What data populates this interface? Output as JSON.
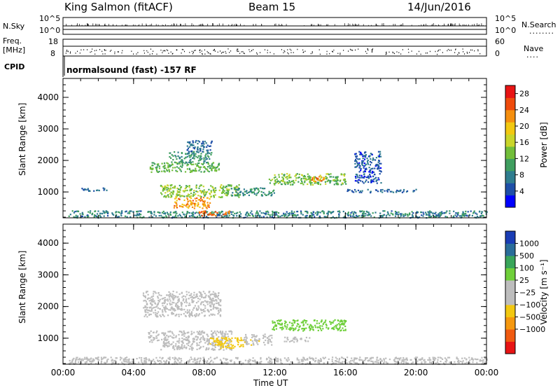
{
  "header": {
    "station": "King Salmon (fitACF)",
    "beam": "Beam 15",
    "date": "14/Jun/2016"
  },
  "strips": {
    "nsky_label": "N.Sky",
    "nsky_ticks": [
      "10^5",
      "10^0"
    ],
    "nsearch_label": "N.Search",
    "nsearch_ticks": [
      "10^5",
      "10^0"
    ],
    "freq_label_line1": "Freq.",
    "freq_label_line2": "[MHz]",
    "freq_ticks": [
      "18",
      "8"
    ],
    "nave_label": "Nave",
    "nave_ticks": [
      "60",
      "0"
    ],
    "cpid_label": "CPID",
    "cpid_text": "normalsound (fast) -157 RF"
  },
  "chart_data": [
    {
      "type": "heatmap",
      "title": "",
      "xlabel": "Time UT",
      "ylabel": "Slant Range [km]",
      "x_ticks": [
        "00:00",
        "04:00",
        "08:00",
        "12:00",
        "16:00",
        "20:00",
        "00:00"
      ],
      "y_ticks": [
        "1000",
        "2000",
        "3000",
        "4000"
      ],
      "xlim_hours": [
        0,
        24
      ],
      "ylim_km": [
        180,
        4600
      ],
      "colorbar": {
        "label": "Power [dB]",
        "ticks": [
          "4",
          "8",
          "12",
          "16",
          "20",
          "24",
          "28"
        ],
        "range": [
          0,
          30
        ],
        "colors": [
          "#0000ff",
          "#1e4fa8",
          "#2f7d8f",
          "#3f9e5f",
          "#72be3a",
          "#c9d52a",
          "#f2c811",
          "#f58f0f",
          "#ef4b0c",
          "#e81414"
        ]
      },
      "regions": [
        {
          "t0": 0.3,
          "t1": 24.0,
          "r0": 200,
          "r1": 420,
          "level": 8
        },
        {
          "t0": 1.0,
          "t1": 2.5,
          "r0": 1050,
          "r1": 1150,
          "level": 6
        },
        {
          "t0": 4.8,
          "t1": 8.9,
          "r0": 1650,
          "r1": 1950,
          "level": 12
        },
        {
          "t0": 6.0,
          "t1": 8.4,
          "r0": 1950,
          "r1": 2300,
          "level": 9
        },
        {
          "t0": 7.0,
          "t1": 8.4,
          "r0": 2300,
          "r1": 2650,
          "level": 6
        },
        {
          "t0": 5.5,
          "t1": 10.0,
          "r0": 850,
          "r1": 1250,
          "level": 14
        },
        {
          "t0": 6.2,
          "t1": 8.3,
          "r0": 500,
          "r1": 850,
          "level": 22
        },
        {
          "t0": 7.6,
          "t1": 9.4,
          "r0": 260,
          "r1": 420,
          "level": 24
        },
        {
          "t0": 9.5,
          "t1": 12.0,
          "r0": 900,
          "r1": 1150,
          "level": 9
        },
        {
          "t0": 11.5,
          "t1": 16.0,
          "r0": 1250,
          "r1": 1600,
          "level": 13
        },
        {
          "t0": 14.0,
          "t1": 14.8,
          "r0": 1350,
          "r1": 1550,
          "level": 22
        },
        {
          "t0": 16.0,
          "t1": 20.0,
          "r0": 1000,
          "r1": 1100,
          "level": 6
        },
        {
          "t0": 16.5,
          "t1": 18.0,
          "r0": 1300,
          "r1": 2300,
          "level": 5
        }
      ]
    },
    {
      "type": "heatmap",
      "title": "",
      "xlabel": "Time UT",
      "ylabel": "Slant Range [km]",
      "x_ticks": [
        "00:00",
        "04:00",
        "08:00",
        "12:00",
        "16:00",
        "20:00",
        "00:00"
      ],
      "y_ticks": [
        "1000",
        "2000",
        "3000",
        "4000"
      ],
      "xlim_hours": [
        0,
        24
      ],
      "ylim_km": [
        180,
        4600
      ],
      "colorbar": {
        "label": "Velocity [m s⁻¹]",
        "ticks": [
          "1000",
          "500",
          "100",
          "25",
          "−25",
          "−100",
          "−500",
          "−1000"
        ],
        "range": [
          -1000,
          1000
        ],
        "colors": [
          "#e81414",
          "#f05a10",
          "#f5980f",
          "#f2c811",
          "#bdbdbd",
          "#bdbdbd",
          "#6fcf3a",
          "#39a55a",
          "#2a6d9a",
          "#1a3db5"
        ]
      },
      "regions": [
        {
          "t0": 0.3,
          "t1": 24.0,
          "r0": 200,
          "r1": 420,
          "level": 60
        },
        {
          "t0": 4.5,
          "t1": 8.9,
          "r0": 1700,
          "r1": 2500,
          "level": 0
        },
        {
          "t0": 5.5,
          "t1": 9.6,
          "r0": 650,
          "r1": 1250,
          "level": 0
        },
        {
          "t0": 8.3,
          "t1": 10.2,
          "r0": 700,
          "r1": 1050,
          "level": -300
        },
        {
          "t0": 10.2,
          "t1": 11.8,
          "r0": 800,
          "r1": 1150,
          "level": -150
        },
        {
          "t0": 11.8,
          "t1": 16.0,
          "r0": 1250,
          "r1": 1600,
          "level": 300
        },
        {
          "t0": 12.5,
          "t1": 14.0,
          "r0": 900,
          "r1": 1050,
          "level": 90
        },
        {
          "t0": 4.8,
          "t1": 5.4,
          "r0": 900,
          "r1": 1250,
          "level": -80
        }
      ]
    }
  ]
}
